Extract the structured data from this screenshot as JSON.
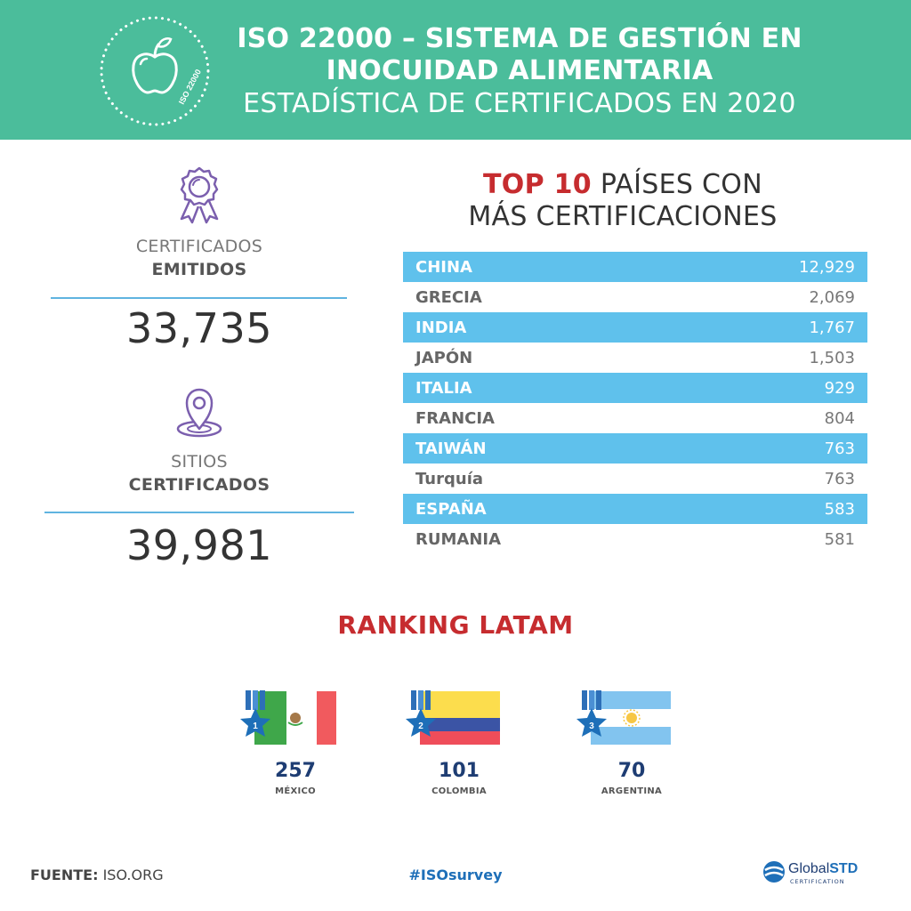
{
  "header": {
    "badge_text": "ISO 22000",
    "title_line1": "ISO 22000 – SISTEMA DE GESTIÓN EN",
    "title_line2": "INOCUIDAD ALIMENTARIA",
    "subtitle": "ESTADÍSTICA DE CERTIFICADOS EN 2020",
    "background_color": "#4bbd9b"
  },
  "stats": {
    "certificates": {
      "icon": "award-ribbon-icon",
      "label_top": "CERTIFICADOS",
      "label_bold": "EMITIDOS",
      "value": "33,735"
    },
    "sites": {
      "icon": "location-pin-icon",
      "label_top": "SITIOS",
      "label_bold": "CERTIFICADOS",
      "value": "39,981"
    }
  },
  "top10": {
    "title_highlight": "TOP 10",
    "title_rest_line1": "PAÍSES CON",
    "title_line2": "MÁS CERTIFICACIONES",
    "rows": [
      {
        "country": "CHINA",
        "value": "12,929"
      },
      {
        "country": "GRECIA",
        "value": "2,069"
      },
      {
        "country": "INDIA",
        "value": "1,767"
      },
      {
        "country": "JAPÓN",
        "value": "1,503"
      },
      {
        "country": "ITALIA",
        "value": "929"
      },
      {
        "country": "FRANCIA",
        "value": "804"
      },
      {
        "country": "TAIWÁN",
        "value": "763"
      },
      {
        "country": "Turquía",
        "value": "763"
      },
      {
        "country": "ESPAÑA",
        "value": "583"
      },
      {
        "country": "RUMANIA",
        "value": "581"
      }
    ],
    "stripe_color": "#5fc1ec"
  },
  "ranking": {
    "title": "RANKING LATAM",
    "entries": [
      {
        "rank": "1",
        "value": "257",
        "country": "MÉXICO",
        "flag": "mexico-flag"
      },
      {
        "rank": "2",
        "value": "101",
        "country": "COLOMBIA",
        "flag": "colombia-flag"
      },
      {
        "rank": "3",
        "value": "70",
        "country": "ARGENTINA",
        "flag": "argentina-flag"
      }
    ]
  },
  "footer": {
    "source_label": "FUENTE:",
    "source_value": "ISO.ORG",
    "hashtag": "#ISOsurvey",
    "logo_name_part1": "Global",
    "logo_name_part2": "STD",
    "logo_tagline": "CERTIFICATION"
  },
  "colors": {
    "accent_red": "#c62c2f",
    "navy": "#1e3d73",
    "light_blue": "#5fb4e0",
    "icon_purple": "#7b5fae"
  }
}
